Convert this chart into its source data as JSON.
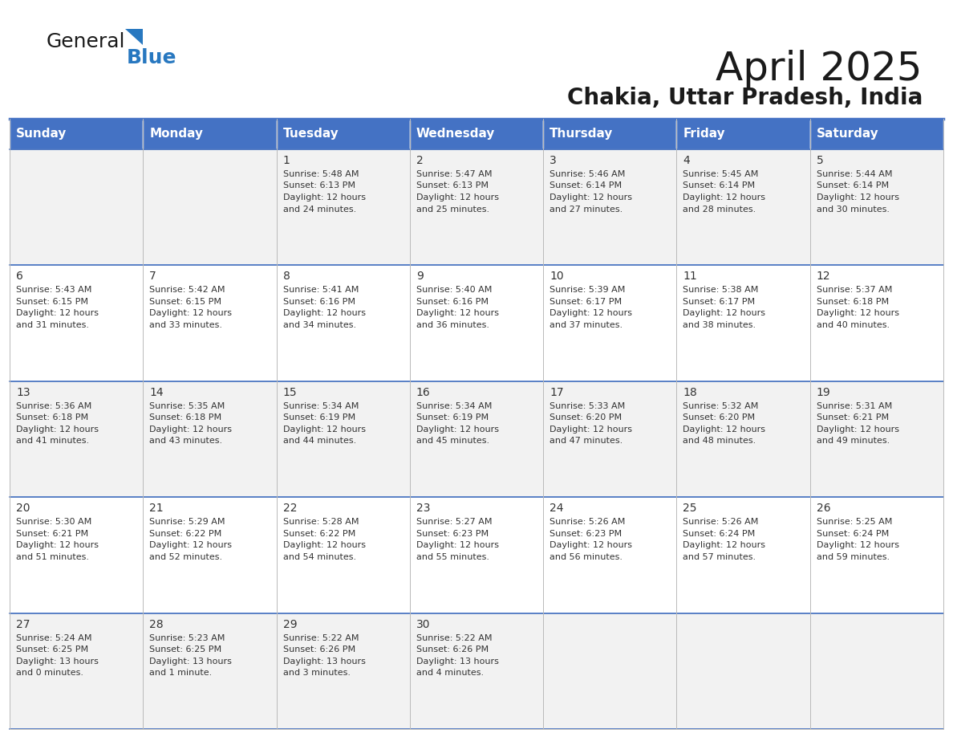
{
  "title": "April 2025",
  "subtitle": "Chakia, Uttar Pradesh, India",
  "header_bg": "#4472C4",
  "header_text_color": "#FFFFFF",
  "cell_bg_odd": "#F2F2F2",
  "cell_bg_even": "#FFFFFF",
  "day_names": [
    "Sunday",
    "Monday",
    "Tuesday",
    "Wednesday",
    "Thursday",
    "Friday",
    "Saturday"
  ],
  "weeks": [
    [
      {
        "day": "",
        "sunrise": "",
        "sunset": "",
        "daylight": ""
      },
      {
        "day": "",
        "sunrise": "",
        "sunset": "",
        "daylight": ""
      },
      {
        "day": "1",
        "sunrise": "Sunrise: 5:48 AM",
        "sunset": "Sunset: 6:13 PM",
        "daylight": "Daylight: 12 hours\nand 24 minutes."
      },
      {
        "day": "2",
        "sunrise": "Sunrise: 5:47 AM",
        "sunset": "Sunset: 6:13 PM",
        "daylight": "Daylight: 12 hours\nand 25 minutes."
      },
      {
        "day": "3",
        "sunrise": "Sunrise: 5:46 AM",
        "sunset": "Sunset: 6:14 PM",
        "daylight": "Daylight: 12 hours\nand 27 minutes."
      },
      {
        "day": "4",
        "sunrise": "Sunrise: 5:45 AM",
        "sunset": "Sunset: 6:14 PM",
        "daylight": "Daylight: 12 hours\nand 28 minutes."
      },
      {
        "day": "5",
        "sunrise": "Sunrise: 5:44 AM",
        "sunset": "Sunset: 6:14 PM",
        "daylight": "Daylight: 12 hours\nand 30 minutes."
      }
    ],
    [
      {
        "day": "6",
        "sunrise": "Sunrise: 5:43 AM",
        "sunset": "Sunset: 6:15 PM",
        "daylight": "Daylight: 12 hours\nand 31 minutes."
      },
      {
        "day": "7",
        "sunrise": "Sunrise: 5:42 AM",
        "sunset": "Sunset: 6:15 PM",
        "daylight": "Daylight: 12 hours\nand 33 minutes."
      },
      {
        "day": "8",
        "sunrise": "Sunrise: 5:41 AM",
        "sunset": "Sunset: 6:16 PM",
        "daylight": "Daylight: 12 hours\nand 34 minutes."
      },
      {
        "day": "9",
        "sunrise": "Sunrise: 5:40 AM",
        "sunset": "Sunset: 6:16 PM",
        "daylight": "Daylight: 12 hours\nand 36 minutes."
      },
      {
        "day": "10",
        "sunrise": "Sunrise: 5:39 AM",
        "sunset": "Sunset: 6:17 PM",
        "daylight": "Daylight: 12 hours\nand 37 minutes."
      },
      {
        "day": "11",
        "sunrise": "Sunrise: 5:38 AM",
        "sunset": "Sunset: 6:17 PM",
        "daylight": "Daylight: 12 hours\nand 38 minutes."
      },
      {
        "day": "12",
        "sunrise": "Sunrise: 5:37 AM",
        "sunset": "Sunset: 6:18 PM",
        "daylight": "Daylight: 12 hours\nand 40 minutes."
      }
    ],
    [
      {
        "day": "13",
        "sunrise": "Sunrise: 5:36 AM",
        "sunset": "Sunset: 6:18 PM",
        "daylight": "Daylight: 12 hours\nand 41 minutes."
      },
      {
        "day": "14",
        "sunrise": "Sunrise: 5:35 AM",
        "sunset": "Sunset: 6:18 PM",
        "daylight": "Daylight: 12 hours\nand 43 minutes."
      },
      {
        "day": "15",
        "sunrise": "Sunrise: 5:34 AM",
        "sunset": "Sunset: 6:19 PM",
        "daylight": "Daylight: 12 hours\nand 44 minutes."
      },
      {
        "day": "16",
        "sunrise": "Sunrise: 5:34 AM",
        "sunset": "Sunset: 6:19 PM",
        "daylight": "Daylight: 12 hours\nand 45 minutes."
      },
      {
        "day": "17",
        "sunrise": "Sunrise: 5:33 AM",
        "sunset": "Sunset: 6:20 PM",
        "daylight": "Daylight: 12 hours\nand 47 minutes."
      },
      {
        "day": "18",
        "sunrise": "Sunrise: 5:32 AM",
        "sunset": "Sunset: 6:20 PM",
        "daylight": "Daylight: 12 hours\nand 48 minutes."
      },
      {
        "day": "19",
        "sunrise": "Sunrise: 5:31 AM",
        "sunset": "Sunset: 6:21 PM",
        "daylight": "Daylight: 12 hours\nand 49 minutes."
      }
    ],
    [
      {
        "day": "20",
        "sunrise": "Sunrise: 5:30 AM",
        "sunset": "Sunset: 6:21 PM",
        "daylight": "Daylight: 12 hours\nand 51 minutes."
      },
      {
        "day": "21",
        "sunrise": "Sunrise: 5:29 AM",
        "sunset": "Sunset: 6:22 PM",
        "daylight": "Daylight: 12 hours\nand 52 minutes."
      },
      {
        "day": "22",
        "sunrise": "Sunrise: 5:28 AM",
        "sunset": "Sunset: 6:22 PM",
        "daylight": "Daylight: 12 hours\nand 54 minutes."
      },
      {
        "day": "23",
        "sunrise": "Sunrise: 5:27 AM",
        "sunset": "Sunset: 6:23 PM",
        "daylight": "Daylight: 12 hours\nand 55 minutes."
      },
      {
        "day": "24",
        "sunrise": "Sunrise: 5:26 AM",
        "sunset": "Sunset: 6:23 PM",
        "daylight": "Daylight: 12 hours\nand 56 minutes."
      },
      {
        "day": "25",
        "sunrise": "Sunrise: 5:26 AM",
        "sunset": "Sunset: 6:24 PM",
        "daylight": "Daylight: 12 hours\nand 57 minutes."
      },
      {
        "day": "26",
        "sunrise": "Sunrise: 5:25 AM",
        "sunset": "Sunset: 6:24 PM",
        "daylight": "Daylight: 12 hours\nand 59 minutes."
      }
    ],
    [
      {
        "day": "27",
        "sunrise": "Sunrise: 5:24 AM",
        "sunset": "Sunset: 6:25 PM",
        "daylight": "Daylight: 13 hours\nand 0 minutes."
      },
      {
        "day": "28",
        "sunrise": "Sunrise: 5:23 AM",
        "sunset": "Sunset: 6:25 PM",
        "daylight": "Daylight: 13 hours\nand 1 minute."
      },
      {
        "day": "29",
        "sunrise": "Sunrise: 5:22 AM",
        "sunset": "Sunset: 6:26 PM",
        "daylight": "Daylight: 13 hours\nand 3 minutes."
      },
      {
        "day": "30",
        "sunrise": "Sunrise: 5:22 AM",
        "sunset": "Sunset: 6:26 PM",
        "daylight": "Daylight: 13 hours\nand 4 minutes."
      },
      {
        "day": "",
        "sunrise": "",
        "sunset": "",
        "daylight": ""
      },
      {
        "day": "",
        "sunrise": "",
        "sunset": "",
        "daylight": ""
      },
      {
        "day": "",
        "sunrise": "",
        "sunset": "",
        "daylight": ""
      }
    ]
  ],
  "logo_text_general": "General",
  "logo_text_blue": "Blue",
  "logo_color_general": "#1a1a1a",
  "logo_color_blue": "#2878C0",
  "logo_triangle_color": "#2878C0",
  "title_fontsize": 36,
  "subtitle_fontsize": 20,
  "day_header_fontsize": 11,
  "cell_day_fontsize": 10,
  "cell_text_fontsize": 8
}
